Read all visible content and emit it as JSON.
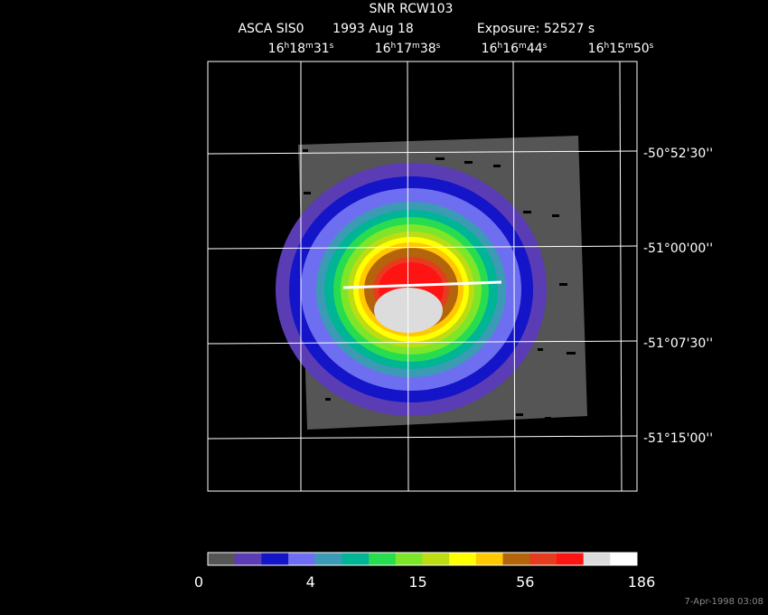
{
  "header": {
    "title": "SNR RCW103",
    "instrument": "ASCA SIS0",
    "date": "1993 Aug 18",
    "exposure": "Exposure: 52527 s"
  },
  "ra_labels": [
    [
      "16",
      "h",
      "18",
      "m",
      "31",
      "s"
    ],
    [
      "16",
      "h",
      "17",
      "m",
      "38",
      "s"
    ],
    [
      "16",
      "h",
      "16",
      "m",
      "44",
      "s"
    ],
    [
      "16",
      "h",
      "15",
      "m",
      "50",
      "s"
    ]
  ],
  "dec_labels": [
    "-50°52'30''",
    "-51°00'00''",
    "-51°07'30''",
    "-51°15'00''"
  ],
  "colorbar": {
    "colors": [
      "#555555",
      "#5a3cb4",
      "#1414c8",
      "#6e6ef0",
      "#3c9bb4",
      "#00b496",
      "#28dc50",
      "#7ee628",
      "#bedc14",
      "#ffff00",
      "#ffc800",
      "#b4640a",
      "#e63c1e",
      "#ff1414",
      "#dcdcdc",
      "#ffffff"
    ],
    "labels": [
      "0",
      "4",
      "15",
      "56",
      "186"
    ]
  },
  "footer": "7-Apr-1998 03:08"
}
